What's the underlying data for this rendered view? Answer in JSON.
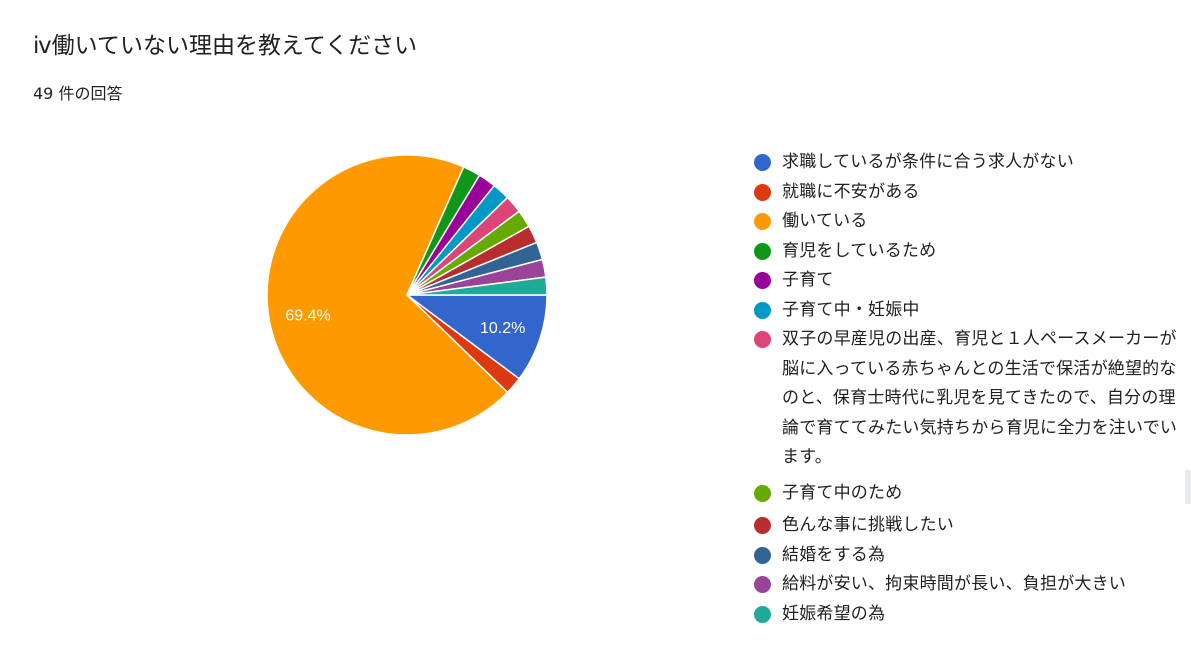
{
  "title": "ⅳ働いていない理由を教えてください",
  "subtitle": "49 件の回答",
  "chart_data": {
    "type": "pie",
    "total_responses": 49,
    "slices": [
      {
        "label": "求職しているが条件に合う求人がない",
        "value": 5,
        "percent_label": "10.2%",
        "color": "#3366cc"
      },
      {
        "label": "就職に不安がある",
        "value": 1,
        "percent_label": "",
        "color": "#dc3912"
      },
      {
        "label": "働いている",
        "value": 34,
        "percent_label": "69.4%",
        "color": "#ff9900"
      },
      {
        "label": "育児をしているため",
        "value": 1,
        "percent_label": "",
        "color": "#109618"
      },
      {
        "label": "子育て",
        "value": 1,
        "percent_label": "",
        "color": "#990099"
      },
      {
        "label": "子育て中・妊娠中",
        "value": 1,
        "percent_label": "",
        "color": "#0099c6"
      },
      {
        "label": "双子の早産児の出産、育児と１人ペースメーカーが脳に入っている赤ちゃんとの生活で保活が絶望的なのと、保育士時代に乳児を見てきたので、自分の理論で育ててみたい気持ちから育児に全力を注いでいます。",
        "value": 1,
        "percent_label": "",
        "color": "#dd4477"
      },
      {
        "label": "子育て中のため",
        "value": 1,
        "percent_label": "",
        "color": "#66aa00"
      },
      {
        "label": "色んな事に挑戦したい",
        "value": 1,
        "percent_label": "",
        "color": "#b82e2e"
      },
      {
        "label": "結婚をする為",
        "value": 1,
        "percent_label": "",
        "color": "#316395"
      },
      {
        "label": "給料が安い、拘束時間が長い、負担が大きい",
        "value": 1,
        "percent_label": "",
        "color": "#994499"
      },
      {
        "label": "妊娠希望の為",
        "value": 1,
        "percent_label": "",
        "color": "#22aa99"
      }
    ],
    "start": "3 o'clock, counter-clockwise from first slice going clockwise",
    "legend_position": "right"
  }
}
